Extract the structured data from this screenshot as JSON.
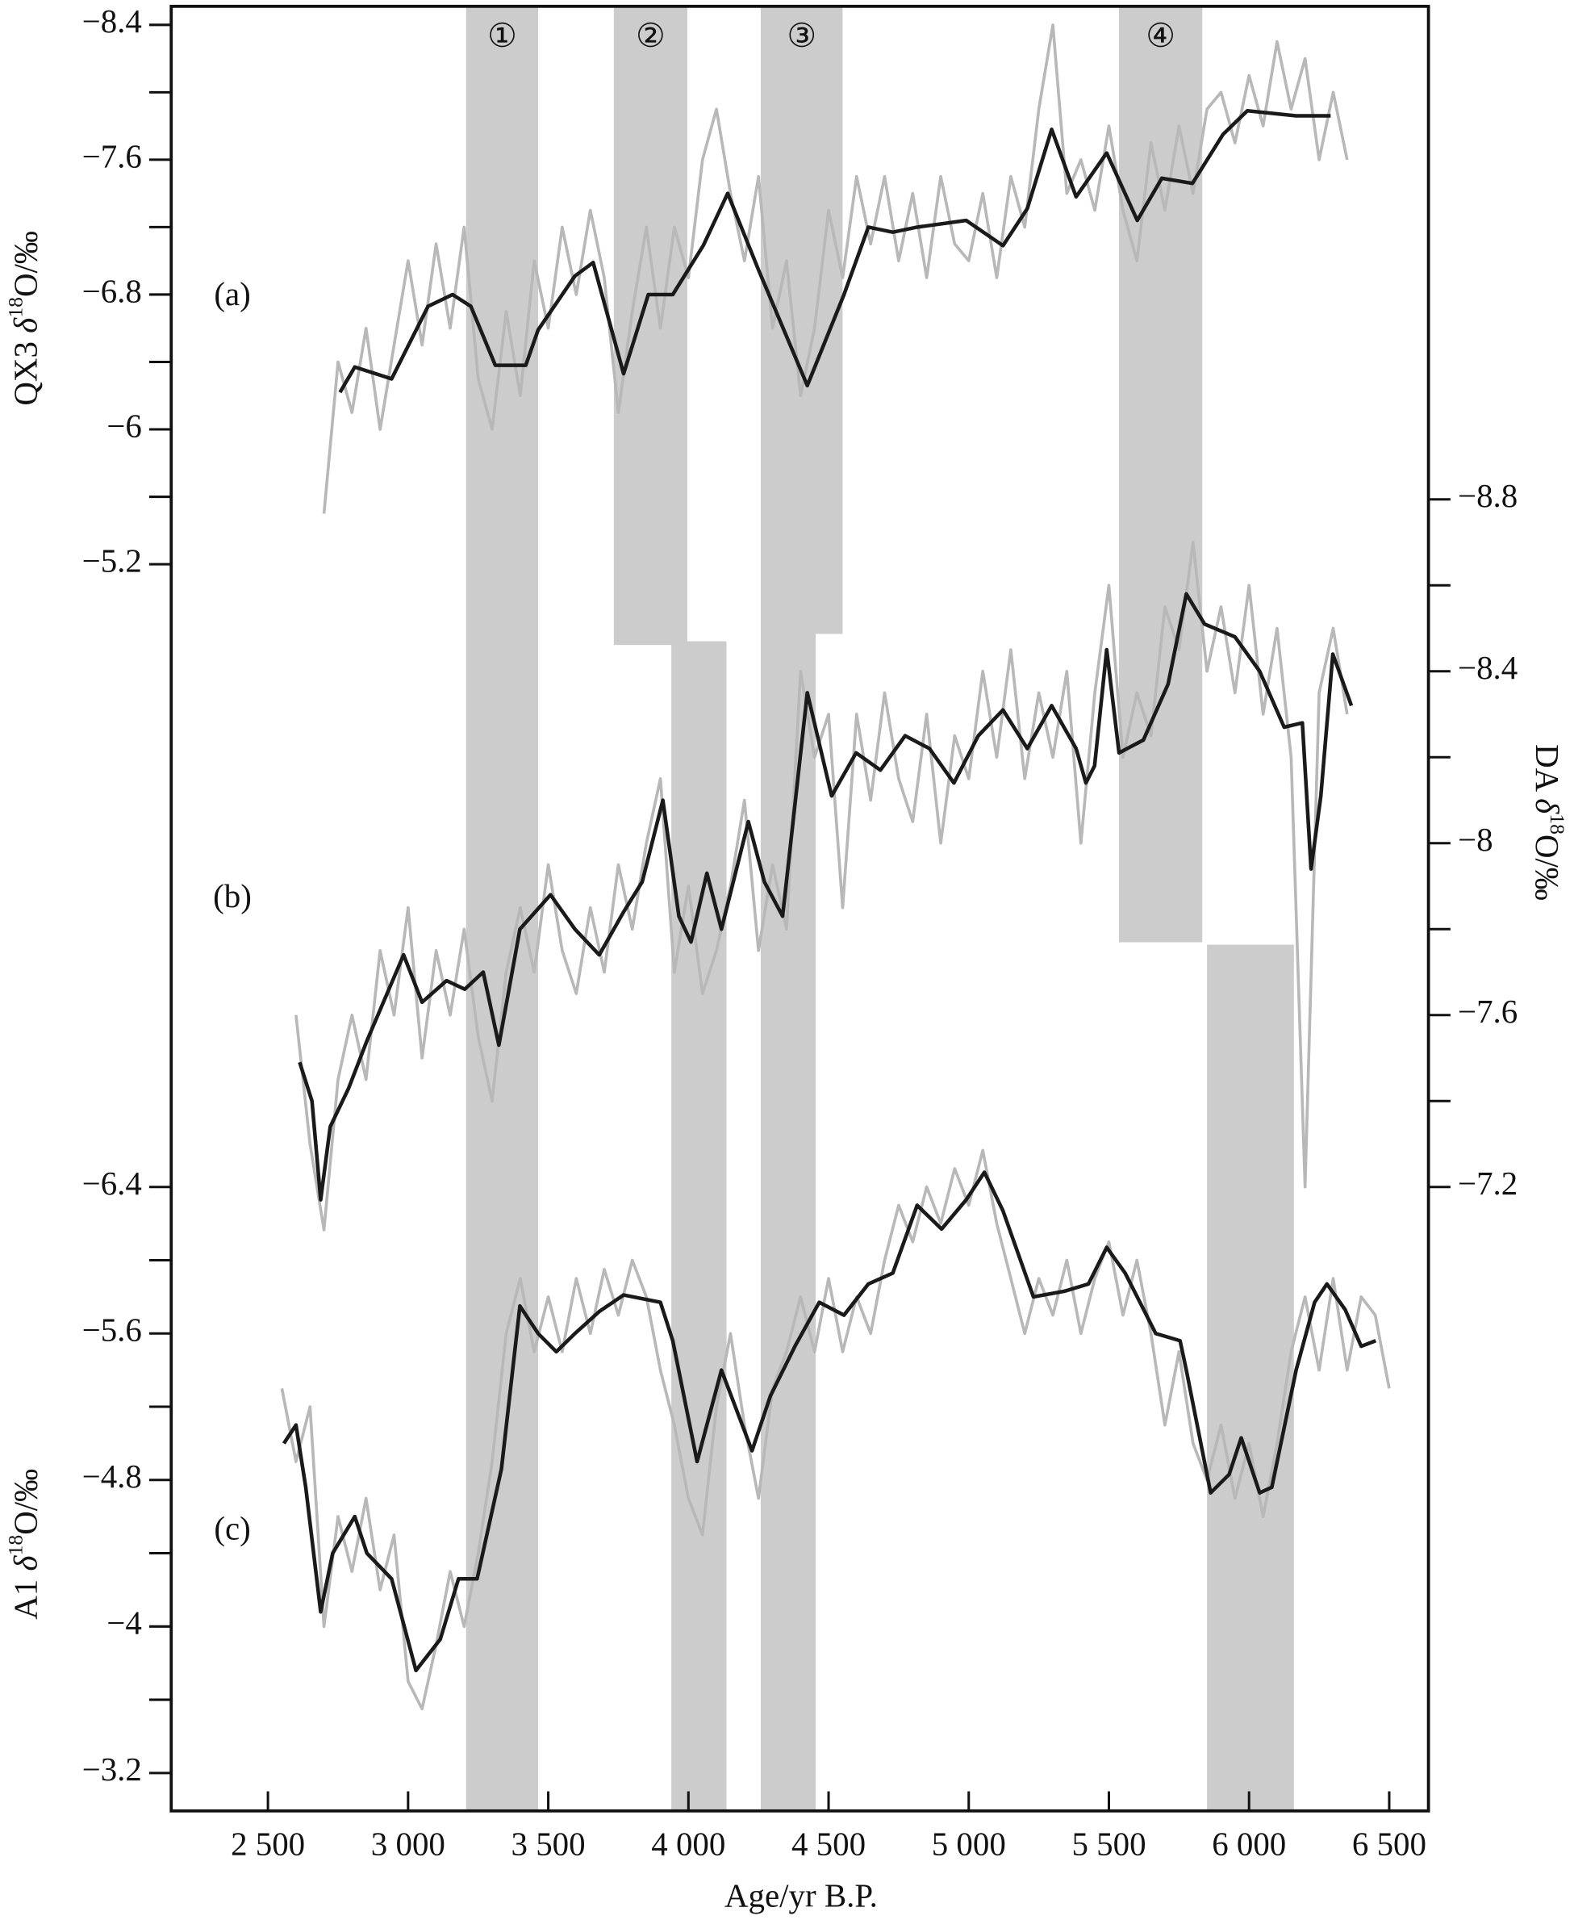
{
  "chart_data": {
    "type": "line",
    "x_label": "Age/yr B.P.",
    "xlim": [
      2155,
      6640
    ],
    "xticks": [
      {
        "value": 2500,
        "label": "2 500"
      },
      {
        "value": 3000,
        "label": "3 000"
      },
      {
        "value": 3500,
        "label": "3 500"
      },
      {
        "value": 4000,
        "label": "4 000"
      },
      {
        "value": 4500,
        "label": "4 500"
      },
      {
        "value": 5000,
        "label": "5 000"
      },
      {
        "value": 5500,
        "label": "5 500"
      },
      {
        "value": 6000,
        "label": "6 000"
      },
      {
        "value": 6500,
        "label": "6 500"
      }
    ],
    "shading_color": "#cccccc",
    "shading": [
      {
        "label": "①",
        "xlim": [
          3207,
          3464
        ]
      },
      {
        "label": "②",
        "xlim": [
          3734,
          3996
        ]
      },
      {
        "label": "③",
        "xlim": [
          4258,
          4550
        ]
      },
      {
        "label": "④",
        "xlim": [
          5536,
          5833
        ]
      },
      {
        "xlim": [
          3939,
          4136
        ]
      },
      {
        "xlim": [
          4258,
          4454
        ]
      },
      {
        "xlim": [
          5850,
          6160
        ]
      }
    ],
    "panels": [
      {
        "label": "(a)",
        "y_label": [
          "QX3 ",
          "δ",
          "18",
          "O/‰"
        ],
        "ylim": [
          -8.51,
          -5.2
        ],
        "yticks": [
          {
            "value": -8.4,
            "label": "−8.4"
          },
          {
            "value": -7.6,
            "label": "−7.6"
          },
          {
            "value": -6.8,
            "label": "−6.8"
          },
          {
            "value": -6,
            "label": "−6"
          },
          {
            "value": -5.2,
            "label": "−5.2"
          }
        ],
        "yticks_minor": [
          -8,
          -7.2,
          -6.4,
          -5.6
        ],
        "series": [
          {
            "color": "#b8b8b8",
            "x": [
              2700,
              2750,
              2800,
              2850,
              2900,
              2950,
              3000,
              3050,
              3100,
              3150,
              3200,
              3250,
              3300,
              3350,
              3400,
              3450,
              3500,
              3550,
              3600,
              3650,
              3700,
              3750,
              3800,
              3850,
              3900,
              3950,
              4000,
              4050,
              4100,
              4150,
              4200,
              4250,
              4300,
              4350,
              4400,
              4450,
              4500,
              4550,
              4600,
              4650,
              4700,
              4750,
              4800,
              4850,
              4900,
              4950,
              5000,
              5050,
              5100,
              5150,
              5200,
              5250,
              5300,
              5350,
              5400,
              5450,
              5500,
              5550,
              5600,
              5650,
              5700,
              5750,
              5800,
              5850,
              5900,
              5950,
              6000,
              6050,
              6100,
              6150,
              6200,
              6250,
              6300,
              6350
            ],
            "values": [
              -5.5,
              -6.4,
              -6.1,
              -6.6,
              -6.0,
              -6.5,
              -7.0,
              -6.5,
              -7.1,
              -6.6,
              -7.2,
              -6.3,
              -6.0,
              -6.7,
              -6.2,
              -7.0,
              -6.6,
              -7.2,
              -6.8,
              -7.3,
              -6.9,
              -6.1,
              -6.7,
              -7.2,
              -6.6,
              -7.2,
              -6.9,
              -7.6,
              -7.9,
              -7.4,
              -7.0,
              -7.5,
              -6.6,
              -7.0,
              -6.2,
              -6.6,
              -7.3,
              -6.9,
              -7.5,
              -7.1,
              -7.5,
              -7.0,
              -7.4,
              -6.9,
              -7.5,
              -7.1,
              -7.0,
              -7.4,
              -6.9,
              -7.5,
              -7.2,
              -7.9,
              -8.4,
              -7.4,
              -7.6,
              -7.3,
              -7.8,
              -7.3,
              -7.0,
              -7.7,
              -7.3,
              -7.8,
              -7.4,
              -7.9,
              -8.0,
              -7.7,
              -8.1,
              -7.8,
              -8.3,
              -7.9,
              -8.2,
              -7.6,
              -8.0,
              -7.6
            ]
          },
          {
            "color": "#1a1a1a",
            "x": [
              2757,
              2810,
              2941,
              3071,
              3159,
              3224,
              3311,
              3420,
              3464,
              3595,
              3660,
              3769,
              3857,
              3944,
              4053,
              4140,
              4249,
              4424,
              4555,
              4642,
              4729,
              4816,
              4991,
              5122,
              5209,
              5296,
              5383,
              5492,
              5601,
              5689,
              5798,
              5907,
              5994,
              6168,
              6291
            ],
            "values": [
              -6.22,
              -6.37,
              -6.3,
              -6.73,
              -6.8,
              -6.73,
              -6.38,
              -6.38,
              -6.59,
              -6.91,
              -6.99,
              -6.33,
              -6.8,
              -6.8,
              -7.09,
              -7.4,
              -6.95,
              -6.26,
              -6.8,
              -7.2,
              -7.17,
              -7.2,
              -7.24,
              -7.09,
              -7.31,
              -7.78,
              -7.38,
              -7.64,
              -7.24,
              -7.49,
              -7.46,
              -7.75,
              -7.89,
              -7.86,
              -7.86
            ]
          }
        ]
      },
      {
        "label": "(b)",
        "y_label": [
          "DA ",
          "δ",
          "18",
          "O/‰"
        ],
        "ylim": [
          -8.8,
          -7.2
        ],
        "yticks": [
          {
            "value": -8.8,
            "label": "−8.8"
          },
          {
            "value": -8.4,
            "label": "−8.4"
          },
          {
            "value": -8,
            "label": "−8"
          },
          {
            "value": -7.6,
            "label": "−7.6"
          },
          {
            "value": -7.2,
            "label": "−7.2"
          }
        ],
        "yticks_minor": [
          -8.6,
          -8.2,
          -7.8,
          -7.4
        ],
        "series": [
          {
            "color": "#b8b8b8",
            "x": [
              2600,
              2650,
              2700,
              2750,
              2800,
              2850,
              2900,
              2950,
              3000,
              3050,
              3100,
              3150,
              3200,
              3250,
              3300,
              3350,
              3400,
              3450,
              3500,
              3550,
              3600,
              3650,
              3700,
              3750,
              3800,
              3850,
              3900,
              3950,
              4000,
              4050,
              4100,
              4150,
              4200,
              4250,
              4300,
              4350,
              4400,
              4450,
              4500,
              4550,
              4600,
              4650,
              4700,
              4750,
              4800,
              4850,
              4900,
              4950,
              5000,
              5050,
              5100,
              5150,
              5200,
              5250,
              5300,
              5350,
              5400,
              5450,
              5500,
              5550,
              5600,
              5650,
              5700,
              5750,
              5800,
              5850,
              5900,
              5950,
              6000,
              6050,
              6100,
              6150,
              6200,
              6250,
              6300,
              6350
            ],
            "values": [
              -7.6,
              -7.3,
              -7.1,
              -7.45,
              -7.6,
              -7.45,
              -7.75,
              -7.6,
              -7.85,
              -7.5,
              -7.75,
              -7.6,
              -7.8,
              -7.55,
              -7.4,
              -7.7,
              -7.85,
              -7.7,
              -7.95,
              -7.75,
              -7.65,
              -7.85,
              -7.7,
              -7.95,
              -7.8,
              -8.0,
              -8.15,
              -7.7,
              -7.9,
              -7.65,
              -7.75,
              -7.9,
              -8.1,
              -7.75,
              -7.95,
              -7.8,
              -8.4,
              -8.2,
              -8.3,
              -7.85,
              -8.3,
              -8.1,
              -8.35,
              -8.15,
              -8.05,
              -8.3,
              -8.0,
              -8.25,
              -8.15,
              -8.4,
              -8.2,
              -8.45,
              -8.15,
              -8.35,
              -8.2,
              -8.4,
              -8.0,
              -8.35,
              -8.6,
              -8.2,
              -8.35,
              -8.25,
              -8.55,
              -8.45,
              -8.7,
              -8.4,
              -8.55,
              -8.35,
              -8.6,
              -8.3,
              -8.5,
              -8.2,
              -7.2,
              -8.35,
              -8.5,
              -8.3
            ]
          },
          {
            "color": "#1a1a1a",
            "x": [
              2613,
              2657,
              2688,
              2722,
              2788,
              2853,
              2984,
              3050,
              3137,
              3202,
              3268,
              3324,
              3399,
              3508,
              3595,
              3682,
              3769,
              3835,
              3909,
              3966,
              4009,
              4066,
              4118,
              4214,
              4271,
              4336,
              4424,
              4511,
              4598,
              4685,
              4773,
              4860,
              4947,
              5034,
              5122,
              5209,
              5296,
              5383,
              5418,
              5449,
              5492,
              5536,
              5623,
              5711,
              5776,
              5841,
              5950,
              6038,
              6125,
              6190,
              6221,
              6256,
              6299,
              6365
            ],
            "values": [
              -7.49,
              -7.4,
              -7.17,
              -7.34,
              -7.43,
              -7.54,
              -7.74,
              -7.63,
              -7.68,
              -7.66,
              -7.7,
              -7.53,
              -7.8,
              -7.88,
              -7.8,
              -7.74,
              -7.84,
              -7.91,
              -8.1,
              -7.83,
              -7.77,
              -7.93,
              -7.8,
              -8.05,
              -7.91,
              -7.83,
              -8.35,
              -8.11,
              -8.21,
              -8.17,
              -8.25,
              -8.22,
              -8.14,
              -8.25,
              -8.31,
              -8.22,
              -8.32,
              -8.22,
              -8.14,
              -8.18,
              -8.45,
              -8.21,
              -8.24,
              -8.37,
              -8.58,
              -8.51,
              -8.48,
              -8.4,
              -8.27,
              -8.28,
              -7.94,
              -8.11,
              -8.44,
              -8.32
            ]
          }
        ]
      },
      {
        "label": "(c)",
        "y_label": [
          "A1 ",
          "δ",
          "18",
          "O/‰"
        ],
        "ylim": [
          -6.4,
          -3.2
        ],
        "yticks": [
          {
            "value": -6.4,
            "label": "−6.4"
          },
          {
            "value": -5.6,
            "label": "−5.6"
          },
          {
            "value": -4.8,
            "label": "−4.8"
          },
          {
            "value": -4,
            "label": "−4"
          },
          {
            "value": -3.2,
            "label": "−3.2"
          }
        ],
        "yticks_minor": [
          -6,
          -5.2,
          -4.4,
          -3.6
        ],
        "series": [
          {
            "color": "#b8b8b8",
            "x": [
              2550,
              2600,
              2650,
              2700,
              2750,
              2800,
              2850,
              2900,
              2950,
              3000,
              3050,
              3100,
              3150,
              3200,
              3250,
              3300,
              3350,
              3400,
              3450,
              3500,
              3550,
              3600,
              3650,
              3700,
              3750,
              3800,
              3850,
              3900,
              3950,
              4000,
              4050,
              4100,
              4150,
              4200,
              4250,
              4300,
              4350,
              4400,
              4450,
              4500,
              4550,
              4600,
              4650,
              4700,
              4750,
              4800,
              4850,
              4900,
              4950,
              5000,
              5050,
              5100,
              5150,
              5200,
              5250,
              5300,
              5350,
              5400,
              5450,
              5500,
              5550,
              5600,
              5650,
              5700,
              5750,
              5800,
              5850,
              5900,
              5950,
              6000,
              6050,
              6100,
              6150,
              6200,
              6250,
              6300,
              6350,
              6400,
              6450,
              6500
            ],
            "values": [
              -5.3,
              -4.9,
              -5.2,
              -4.0,
              -4.6,
              -4.3,
              -4.7,
              -4.2,
              -4.5,
              -3.7,
              -3.55,
              -3.9,
              -4.3,
              -4.0,
              -4.4,
              -4.9,
              -5.6,
              -5.9,
              -5.5,
              -5.8,
              -5.5,
              -5.9,
              -5.6,
              -5.95,
              -5.7,
              -6.0,
              -5.8,
              -5.4,
              -5.1,
              -4.7,
              -4.5,
              -5.2,
              -5.6,
              -5.1,
              -4.7,
              -5.3,
              -5.5,
              -5.8,
              -5.5,
              -5.9,
              -5.5,
              -5.8,
              -5.6,
              -6.0,
              -6.3,
              -6.1,
              -6.4,
              -6.2,
              -6.5,
              -6.3,
              -6.6,
              -6.2,
              -5.9,
              -5.6,
              -5.9,
              -5.7,
              -6.0,
              -5.6,
              -5.9,
              -6.1,
              -5.7,
              -6.0,
              -5.6,
              -5.1,
              -5.5,
              -5.0,
              -4.8,
              -5.1,
              -4.7,
              -5.0,
              -4.6,
              -5.0,
              -5.5,
              -5.8,
              -5.4,
              -5.9,
              -5.4,
              -5.8,
              -5.7,
              -5.3
            ]
          },
          {
            "color": "#1a1a1a",
            "x": [
              2557,
              2600,
              2635,
              2688,
              2731,
              2810,
              2853,
              2941,
              3028,
              3115,
              3180,
              3246,
              3333,
              3399,
              3464,
              3529,
              3595,
              3682,
              3769,
              3900,
              3944,
              4031,
              4118,
              4227,
              4293,
              4380,
              4467,
              4555,
              4642,
              4729,
              4816,
              4903,
              4991,
              5056,
              5122,
              5231,
              5340,
              5427,
              5492,
              5558,
              5667,
              5754,
              5776,
              5863,
              5929,
              5972,
              6038,
              6081,
              6168,
              6234,
              6278,
              6343,
              6400,
              6452
            ],
            "values": [
              -5.0,
              -5.1,
              -4.76,
              -4.08,
              -4.4,
              -4.6,
              -4.4,
              -4.26,
              -3.76,
              -3.93,
              -4.26,
              -4.26,
              -4.86,
              -5.75,
              -5.6,
              -5.5,
              -5.6,
              -5.72,
              -5.81,
              -5.77,
              -5.56,
              -4.9,
              -5.4,
              -4.96,
              -5.26,
              -5.53,
              -5.77,
              -5.7,
              -5.87,
              -5.93,
              -6.3,
              -6.17,
              -6.33,
              -6.48,
              -6.27,
              -5.8,
              -5.83,
              -5.87,
              -6.07,
              -5.93,
              -5.6,
              -5.56,
              -5.4,
              -4.73,
              -4.83,
              -5.03,
              -4.73,
              -4.76,
              -5.4,
              -5.77,
              -5.87,
              -5.73,
              -5.53,
              -5.56
            ]
          }
        ]
      }
    ]
  }
}
